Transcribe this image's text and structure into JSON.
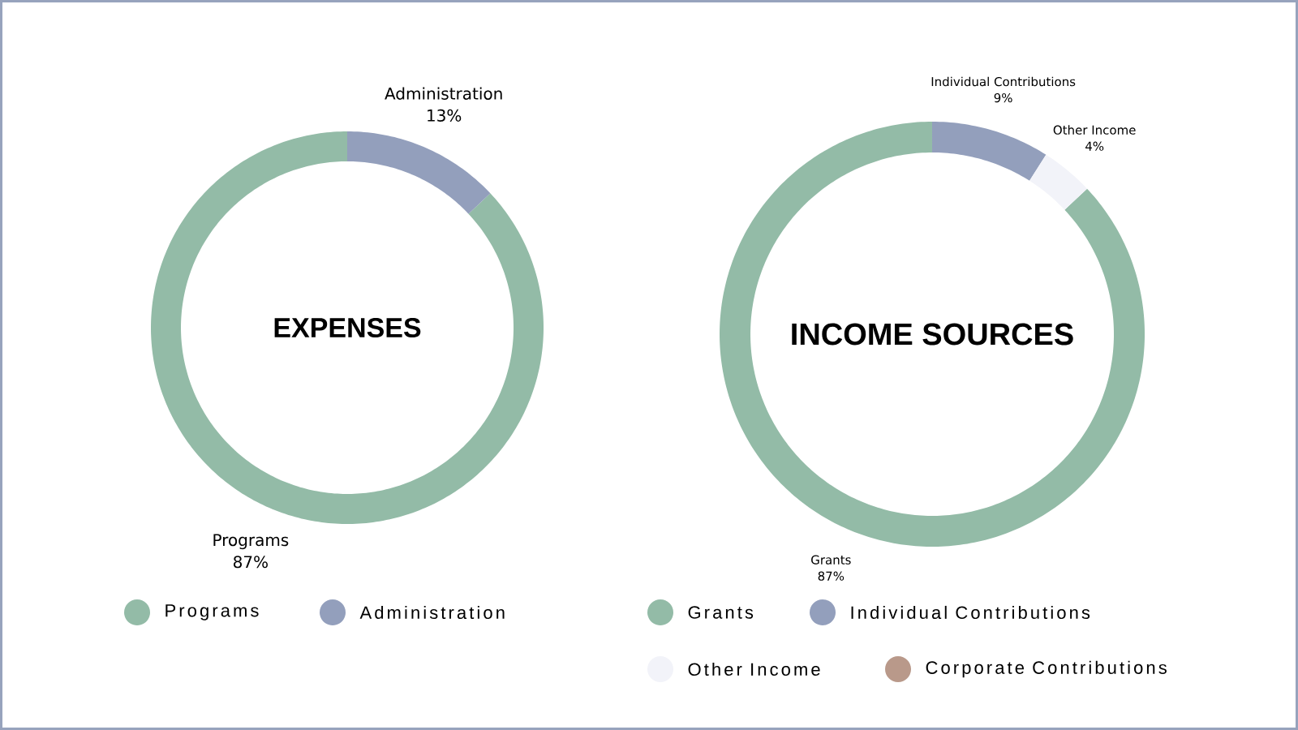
{
  "chart_data": [
    {
      "type": "donut",
      "title": "EXPENSES",
      "categories": [
        "Programs",
        "Administration"
      ],
      "values": [
        87,
        13
      ],
      "value_labels": [
        "87%",
        "13%"
      ],
      "colors": [
        "#93bba7",
        "#939fbc"
      ],
      "legend": "bottom"
    },
    {
      "type": "donut",
      "title": "INCOME SOURCES",
      "categories": [
        "Grants",
        "Individual Contributions",
        "Other Income",
        "Corporate Contributions"
      ],
      "values": [
        87,
        9,
        4,
        0
      ],
      "value_labels": [
        "87%",
        "9%",
        "4%",
        null
      ],
      "colors": [
        "#93bba7",
        "#939fbc",
        "#f2f3f9",
        "#b9998a"
      ],
      "legend": "bottom"
    }
  ]
}
